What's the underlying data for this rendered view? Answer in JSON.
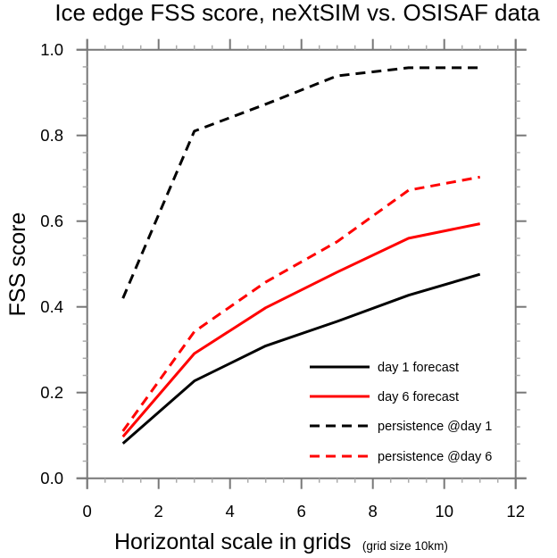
{
  "chart_data": {
    "type": "line",
    "title": "Ice edge FSS score, neXtSIM vs. OSISAF data",
    "xlabel": "Horizontal scale in grids",
    "xlabel_suffix": "(grid size 10km)",
    "ylabel": "FSS score",
    "xlim": [
      0,
      12
    ],
    "ylim": [
      0.0,
      1.0
    ],
    "x_major_ticks": [
      0,
      2,
      4,
      6,
      8,
      10,
      12
    ],
    "x_tick_labels": [
      "0",
      "2",
      "4",
      "6",
      "8",
      "10",
      "12"
    ],
    "x_minor_step": 0.5,
    "y_major_ticks": [
      0.0,
      0.2,
      0.4,
      0.6,
      0.8,
      1.0
    ],
    "y_tick_labels": [
      "0.0",
      "0.2",
      "0.4",
      "0.6",
      "0.8",
      "1.0"
    ],
    "y_minor_step": 0.04,
    "grid": false,
    "legend_position": "bottom-right",
    "x": [
      1,
      3,
      5,
      7,
      9,
      11
    ],
    "series": [
      {
        "name": "day 1 forecast",
        "color": "#000000",
        "dash": "solid",
        "values": [
          0.081,
          0.227,
          0.309,
          0.366,
          0.427,
          0.476
        ]
      },
      {
        "name": "day 6 forecast",
        "color": "#ff0000",
        "dash": "solid",
        "values": [
          0.097,
          0.291,
          0.398,
          0.481,
          0.56,
          0.594
        ]
      },
      {
        "name": "persistence @day 1",
        "color": "#000000",
        "dash": "dashed",
        "values": [
          0.42,
          0.81,
          0.873,
          0.939,
          0.958,
          0.958
        ]
      },
      {
        "name": "persistence @day 6",
        "color": "#ff0000",
        "dash": "dashed",
        "values": [
          0.11,
          0.342,
          0.458,
          0.552,
          0.672,
          0.703
        ]
      }
    ]
  }
}
